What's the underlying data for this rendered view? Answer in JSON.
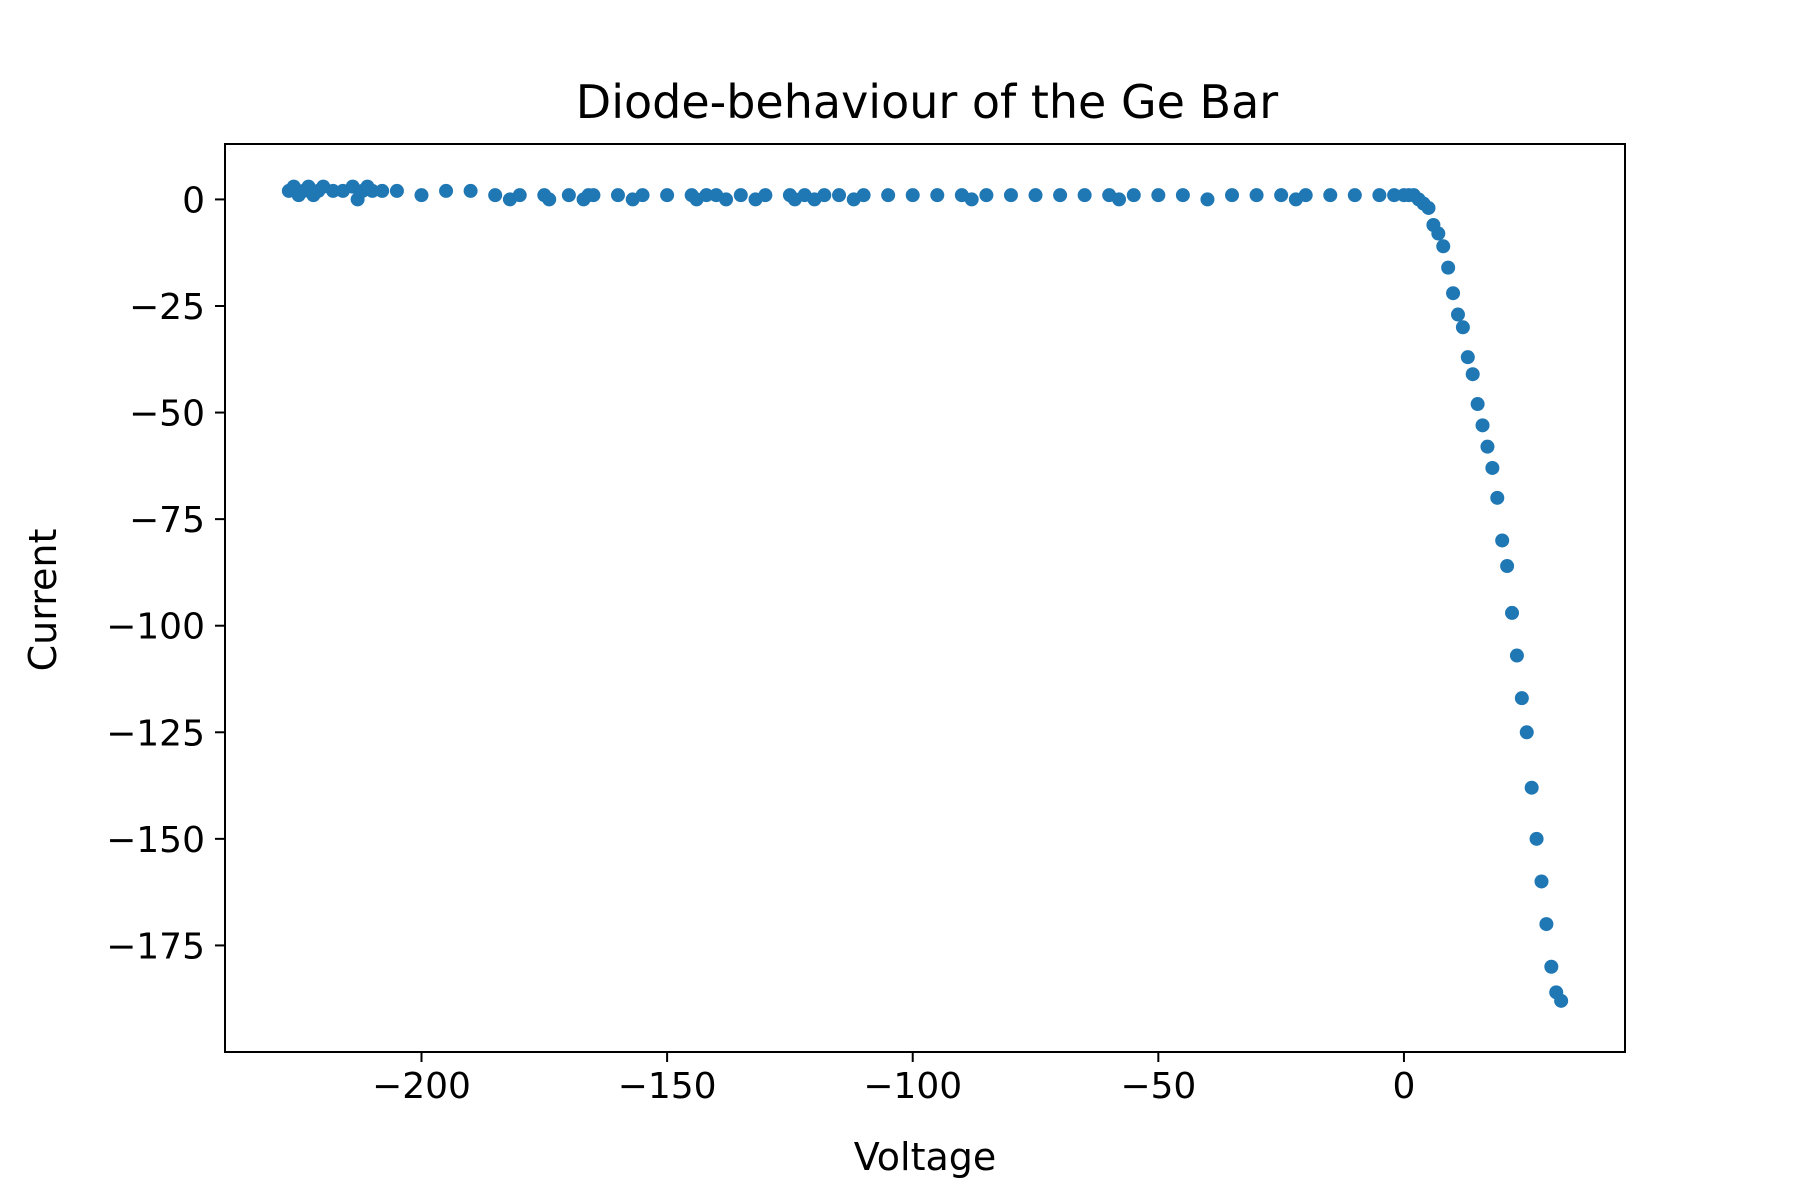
{
  "chart_data": {
    "type": "scatter",
    "title": "Diode-behaviour of the Ge Bar",
    "xlabel": "Voltage",
    "ylabel": "Current",
    "xlim": [
      -240,
      45
    ],
    "ylim": [
      -200,
      13
    ],
    "xticks": [
      -200,
      -150,
      -100,
      -50,
      0
    ],
    "xtick_labels": [
      "−200",
      "−150",
      "−100",
      "−50",
      "0"
    ],
    "yticks": [
      0,
      -25,
      -50,
      -75,
      -100,
      -125,
      -150,
      -175
    ],
    "ytick_labels": [
      "0",
      "−25",
      "−50",
      "−75",
      "−100",
      "−125",
      "−150",
      "−175"
    ],
    "grid": false,
    "marker_color": "#1f77b4",
    "series": [
      {
        "x": [
          -227,
          -226,
          -225,
          -224,
          -223,
          -222,
          -221,
          -220,
          -218,
          -216,
          -214,
          -213,
          -212,
          -211,
          -210,
          -208,
          -205,
          -200,
          -195,
          -190,
          -185,
          -182,
          -180,
          -175,
          -174,
          -170,
          -167,
          -166,
          -165,
          -160,
          -157,
          -155,
          -150,
          -145,
          -144,
          -142,
          -140,
          -138,
          -135,
          -132,
          -130,
          -125,
          -124,
          -122,
          -120,
          -118,
          -115,
          -112,
          -110,
          -105,
          -100,
          -95,
          -90,
          -88,
          -85,
          -80,
          -75,
          -70,
          -65,
          -60,
          -58,
          -55,
          -50,
          -45,
          -40,
          -35,
          -30,
          -25,
          -22,
          -20,
          -15,
          -10,
          -5,
          -2,
          0,
          1,
          2,
          3,
          4,
          5,
          6,
          7,
          8,
          9,
          10,
          11,
          12,
          13,
          14,
          15,
          16,
          17,
          18,
          19,
          20,
          21,
          22,
          23,
          24,
          25,
          26,
          27,
          28,
          29,
          30,
          31,
          32
        ],
        "y": [
          2,
          3,
          1,
          2,
          3,
          1,
          2,
          3,
          2,
          2,
          3,
          0,
          2,
          3,
          2,
          2,
          2,
          1,
          2,
          2,
          1,
          0,
          1,
          1,
          0,
          1,
          0,
          1,
          1,
          1,
          0,
          1,
          1,
          1,
          0,
          1,
          1,
          0,
          1,
          0,
          1,
          1,
          0,
          1,
          0,
          1,
          1,
          0,
          1,
          1,
          1,
          1,
          1,
          0,
          1,
          1,
          1,
          1,
          1,
          1,
          0,
          1,
          1,
          1,
          0,
          1,
          1,
          1,
          0,
          1,
          1,
          1,
          1,
          1,
          1,
          1,
          1,
          0,
          -1,
          -2,
          -6,
          -8,
          -11,
          -16,
          -22,
          -27,
          -30,
          -37,
          -41,
          -48,
          -53,
          -58,
          -63,
          -70,
          -80,
          -86,
          -97,
          -107,
          -117,
          -125,
          -138,
          -150,
          -160,
          -170,
          -180,
          -186,
          -188
        ]
      }
    ]
  }
}
